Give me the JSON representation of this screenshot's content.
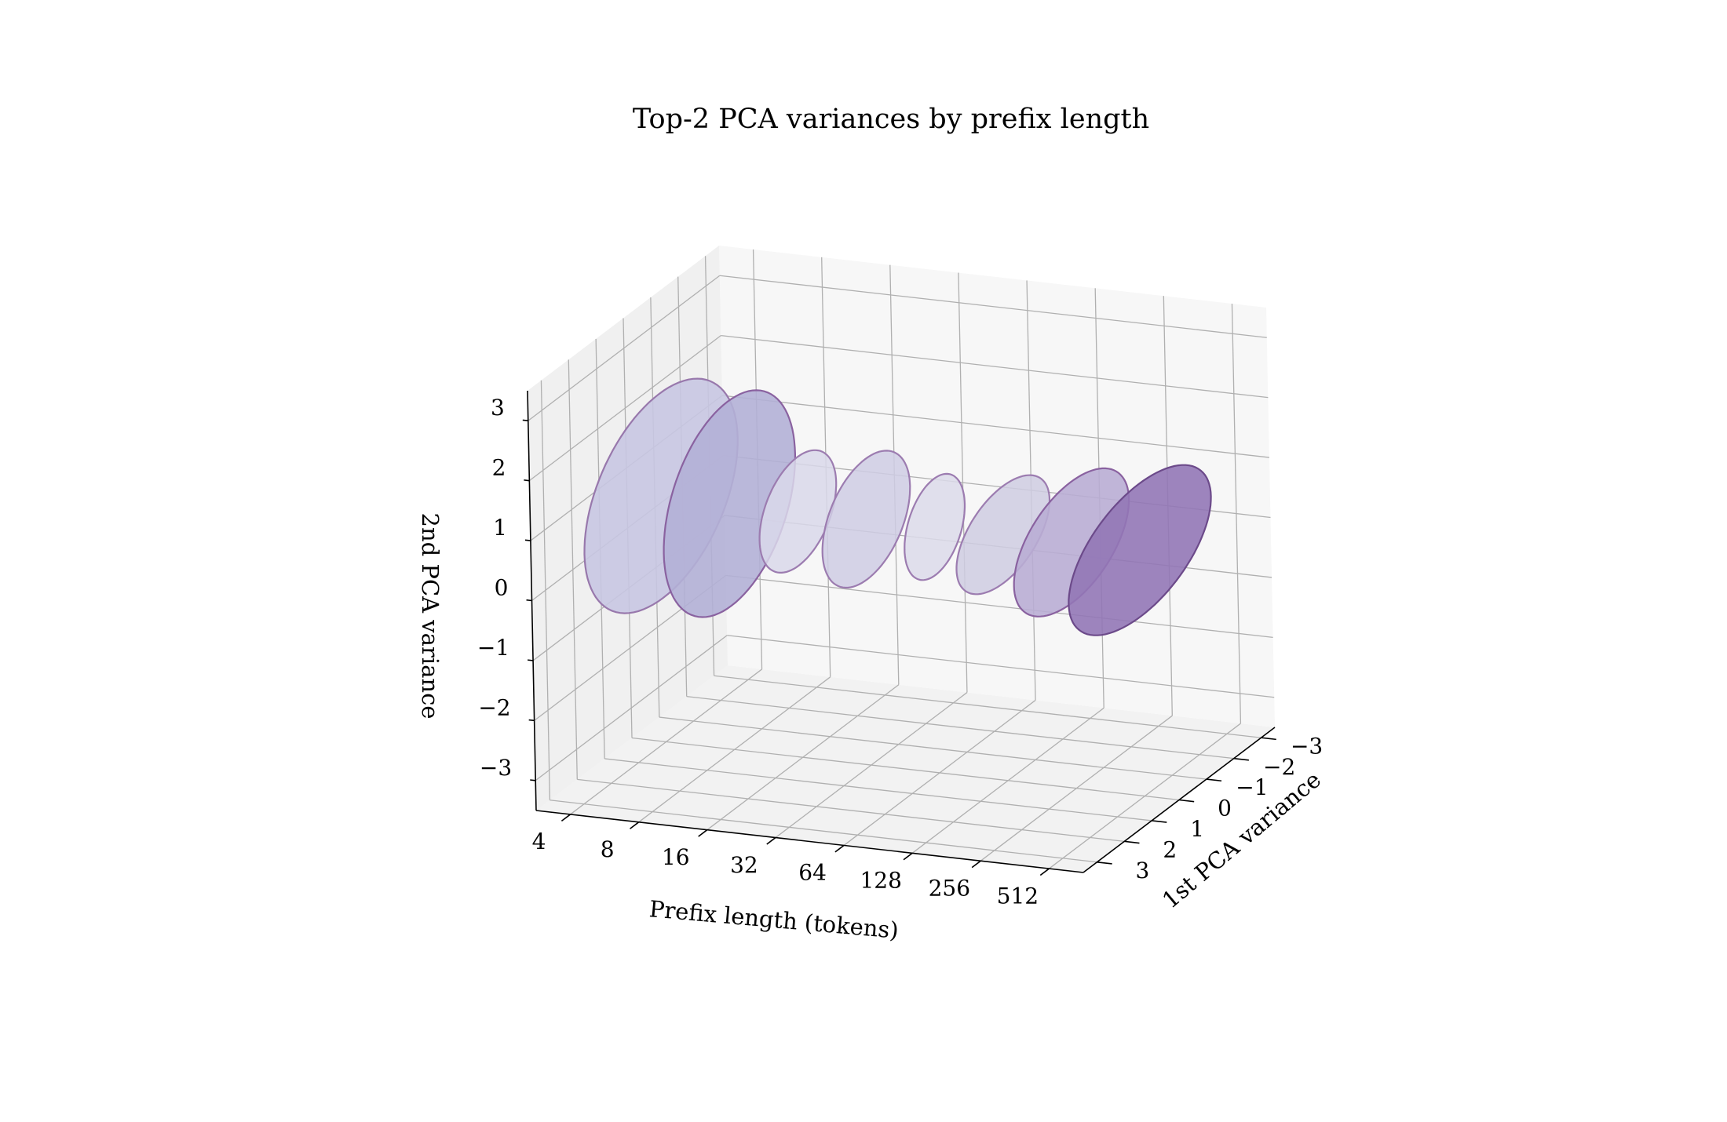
{
  "chart_data": {
    "type": "3d-ellipses",
    "title": "Top-2 PCA variances by prefix length",
    "x_axis": {
      "label": "Prefix length (tokens)",
      "categories": [
        "4",
        "8",
        "16",
        "32",
        "64",
        "128",
        "256",
        "512"
      ]
    },
    "y_axis": {
      "label": "1st PCA variance",
      "range": [
        -3.5,
        3.5
      ],
      "ticks": [
        3,
        2,
        1,
        0,
        -1,
        -2,
        -3
      ],
      "tick_labels": [
        "3",
        "2",
        "1",
        "0",
        "−1",
        "−2",
        "−3"
      ]
    },
    "z_axis": {
      "label": "2nd PCA variance",
      "range": [
        -3.5,
        3.5
      ],
      "ticks": [
        3,
        2,
        1,
        0,
        -1,
        -2,
        -3
      ],
      "tick_labels": [
        "3",
        "2",
        "1",
        "0",
        "−1",
        "−2",
        "−3"
      ]
    },
    "grid": true,
    "series": [
      {
        "prefix_length": 4,
        "center": [
          0.0,
          0.6
        ],
        "radius_1st": 2.8,
        "radius_2nd": 1.7,
        "fill": "#c8c7e2",
        "fill_opacity": 0.9,
        "edge": "#9878ac"
      },
      {
        "prefix_length": 8,
        "center": [
          0.0,
          0.6
        ],
        "radius_1st": 2.4,
        "radius_2nd": 1.7,
        "fill": "#b2b0d6",
        "fill_opacity": 0.9,
        "edge": "#8a62a0"
      },
      {
        "prefix_length": 16,
        "center": [
          0.0,
          0.6
        ],
        "radius_1st": 1.4,
        "radius_2nd": 0.9,
        "fill": "#d9d8ea",
        "fill_opacity": 0.85,
        "edge": "#9c7cb0"
      },
      {
        "prefix_length": 32,
        "center": [
          0.0,
          0.6
        ],
        "radius_1st": 1.6,
        "radius_2nd": 1.0,
        "fill": "#cfcde4",
        "fill_opacity": 0.85,
        "edge": "#9c7cb0"
      },
      {
        "prefix_length": 64,
        "center": [
          0.0,
          0.6
        ],
        "radius_1st": 1.1,
        "radius_2nd": 0.8,
        "fill": "#dcdbea",
        "fill_opacity": 0.85,
        "edge": "#9c7cb0"
      },
      {
        "prefix_length": 128,
        "center": [
          0.0,
          0.6
        ],
        "radius_1st": 1.7,
        "radius_2nd": 0.8,
        "fill": "#cfcce2",
        "fill_opacity": 0.85,
        "edge": "#9c7cb0"
      },
      {
        "prefix_length": 256,
        "center": [
          0.0,
          0.6
        ],
        "radius_1st": 2.1,
        "radius_2nd": 1.0,
        "fill": "#b9add4",
        "fill_opacity": 0.9,
        "edge": "#8a62a0"
      },
      {
        "prefix_length": 512,
        "center": [
          0.0,
          0.6
        ],
        "radius_1st": 2.6,
        "radius_2nd": 1.1,
        "fill": "#9277b6",
        "fill_opacity": 0.9,
        "edge": "#6c4a8a"
      }
    ],
    "colors": {
      "pane_floor": "#f2f2f2",
      "pane_back": "#f7f7f7",
      "pane_side": "#f0f0f0"
    }
  }
}
